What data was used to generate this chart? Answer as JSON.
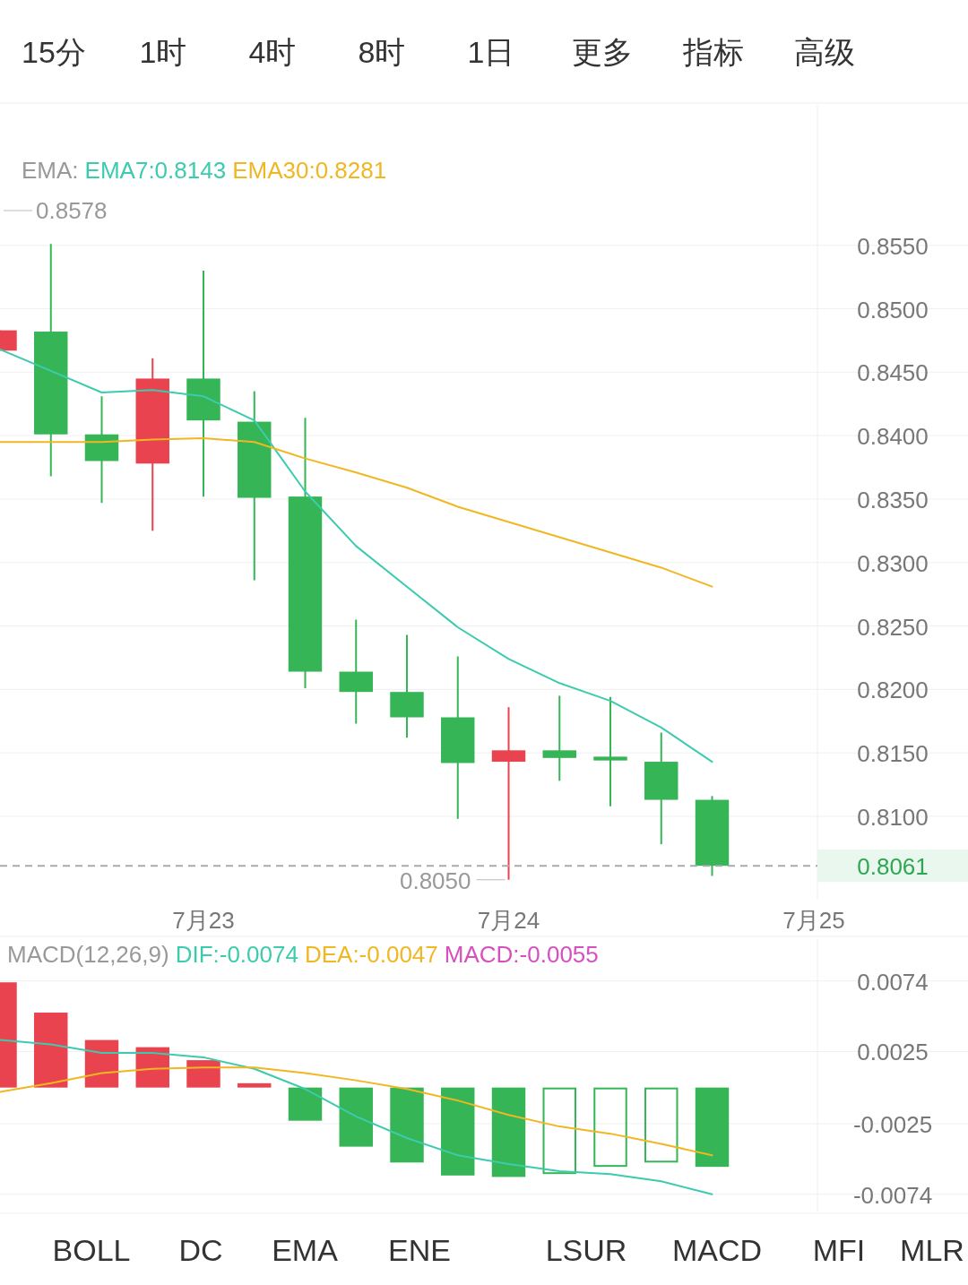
{
  "chart_data": [
    {
      "type": "other",
      "annotations": [
        "15分",
        "1时",
        "4时",
        "8时",
        "1日",
        "更多",
        "指标",
        "高级"
      ]
    },
    {
      "type": "candlestick",
      "title": "EMA:",
      "grid": "y",
      "categories": [
        null,
        null,
        null,
        null,
        "7月23",
        null,
        null,
        null,
        null,
        null,
        "7月24",
        null,
        null,
        null,
        null,
        null,
        "7月25"
      ],
      "ohlc": [
        [
          0.8467,
          0.8483,
          0.8467,
          0.8483
        ],
        [
          0.8482,
          0.8551,
          0.8368,
          0.8401
        ],
        [
          0.8401,
          0.8431,
          0.8347,
          0.838
        ],
        [
          0.8378,
          0.8461,
          0.8325,
          0.8445
        ],
        [
          0.8445,
          0.853,
          0.8352,
          0.8412
        ],
        [
          0.8411,
          0.8435,
          0.8286,
          0.8351
        ],
        [
          0.8352,
          0.8414,
          0.8201,
          0.8214
        ],
        [
          0.8214,
          0.8255,
          0.8173,
          0.8198
        ],
        [
          0.8198,
          0.8243,
          0.8162,
          0.8178
        ],
        [
          0.8178,
          0.8226,
          0.8098,
          0.8142
        ],
        [
          0.8143,
          0.8186,
          0.805,
          0.8152
        ],
        [
          0.8152,
          0.8195,
          0.8128,
          0.8146
        ],
        [
          0.8147,
          0.8194,
          0.8108,
          0.8144
        ],
        [
          0.8143,
          0.8166,
          0.8078,
          0.8113
        ],
        [
          0.8113,
          0.8116,
          0.8053,
          0.8061
        ],
        null,
        null
      ],
      "colors": [
        "#e9434f",
        "#35b556",
        "#35b556",
        "#e9434f",
        "#35b556",
        "#35b556",
        "#35b556",
        "#35b556",
        "#35b556",
        "#35b556",
        "#e9434f",
        "#35b556",
        "#35b556",
        "#35b556",
        "#35b556",
        null,
        null
      ],
      "series": [
        {
          "name": "EMA7:0.8143",
          "type": "line",
          "color": "#3ccbad",
          "values": [
            0.8468,
            0.8451,
            0.8434,
            0.8436,
            0.8431,
            0.8412,
            0.8356,
            0.8313,
            0.8281,
            0.8249,
            0.8224,
            0.8205,
            0.8191,
            0.817,
            0.8143,
            null,
            null
          ]
        },
        {
          "name": "EMA30:0.8281",
          "type": "line",
          "color": "#f0b722",
          "values": [
            0.8395,
            0.8395,
            0.8395,
            0.8397,
            0.8398,
            0.8395,
            0.8382,
            0.8371,
            0.8359,
            0.8344,
            0.8332,
            0.832,
            0.8308,
            0.8296,
            0.8281,
            null,
            null
          ]
        }
      ],
      "ylim": [
        0.8035,
        0.866
      ],
      "yticks": [
        {
          "value": 0.81,
          "label": "0.8100"
        },
        {
          "value": 0.815,
          "label": "0.8150"
        },
        {
          "value": 0.82,
          "label": "0.8200"
        },
        {
          "value": 0.825,
          "label": "0.8250"
        },
        {
          "value": 0.83,
          "label": "0.8300"
        },
        {
          "value": 0.835,
          "label": "0.8350"
        },
        {
          "value": 0.84,
          "label": "0.8400"
        },
        {
          "value": 0.845,
          "label": "0.8450"
        },
        {
          "value": 0.85,
          "label": "0.8500"
        },
        {
          "value": 0.855,
          "label": "0.8550"
        }
      ],
      "ref_lines": [
        {
          "axis": "y",
          "value": 0.8061,
          "label": "0.8061",
          "color": "#aaaaaa",
          "line_style": "dashed"
        }
      ],
      "annotations": [
        "0.8578",
        {
          "text": "0.8050",
          "x": "7月24",
          "y": 0.805
        }
      ]
    },
    {
      "type": "bar",
      "title": "MACD(12,26,9)",
      "grid": "y",
      "tick_labels": "y",
      "annotations": [
        "MACD:-0.0055"
      ],
      "categories": [
        null,
        null,
        null,
        null,
        null,
        null,
        null,
        null,
        null,
        null,
        null,
        null,
        null,
        null,
        null,
        null,
        null
      ],
      "series": [
        {
          "name": "DIF:-0.0074",
          "type": "line",
          "color": "#3ccbad",
          "values": [
            0.0033,
            0.003,
            0.0024,
            0.0024,
            0.0021,
            0.0013,
            -0.0001,
            -0.002,
            -0.0035,
            -0.0047,
            -0.0053,
            -0.0058,
            -0.006,
            -0.0065,
            -0.0074,
            null,
            null
          ]
        },
        {
          "name": "DEA:-0.0047",
          "type": "line",
          "color": "#f0b722",
          "values": [
            -0.0003,
            0.0003,
            0.001,
            0.0013,
            0.0014,
            0.0014,
            0.001,
            0.0005,
            -0.0001,
            -0.0009,
            -0.0019,
            -0.0027,
            -0.0032,
            -0.0039,
            -0.0047,
            null,
            null
          ]
        },
        {
          "type": "bar",
          "colors": [
            "#e9434f",
            "#e9434f",
            "#e9434f",
            "#e9434f",
            "#e9434f",
            "#e9434f",
            "#35b556",
            "#35b556",
            "#35b556",
            "#35b556",
            "#35b556",
            "#35b556",
            "#35b556",
            "#35b556",
            "#35b556",
            null,
            null
          ],
          "values": [
            0.0073,
            0.0052,
            0.0033,
            0.0028,
            0.0019,
            0.0003,
            -0.0023,
            -0.0041,
            -0.0052,
            -0.0061,
            -0.0062,
            -0.006,
            -0.0055,
            -0.0052,
            -0.0055,
            null,
            null
          ]
        }
      ],
      "ylim": [
        -0.0086,
        0.0103
      ],
      "yticks": [
        {
          "value": 0.0074,
          "label": "0.0074"
        },
        {
          "value": 0.0025,
          "label": "0.0025"
        },
        {
          "value": -0.0025,
          "label": "-0.0025"
        },
        {
          "value": -0.0074,
          "label": "-0.0074"
        }
      ]
    },
    {
      "type": "other",
      "annotations": [
        "BOLL",
        "DC",
        "EMA",
        "ENE",
        "LSUR",
        "MACD",
        "MFI",
        "MLR"
      ]
    }
  ]
}
